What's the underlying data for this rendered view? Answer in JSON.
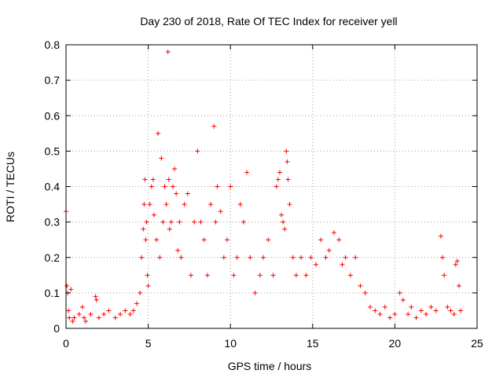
{
  "chart_data": {
    "type": "scatter",
    "title": "Day 230 of 2018, Rate Of TEC Index for receiver yell",
    "xlabel": "GPS time / hours",
    "ylabel": "ROTI / TECUs",
    "xlim": [
      0,
      25
    ],
    "ylim": [
      0,
      0.8
    ],
    "xticks": [
      0,
      5,
      10,
      15,
      20,
      25
    ],
    "yticks": [
      0,
      0.1,
      0.2,
      0.3,
      0.4,
      0.5,
      0.6,
      0.7,
      0.8
    ],
    "xtick_labels": [
      "0",
      "5",
      "10",
      "15",
      "20",
      "25"
    ],
    "ytick_labels": [
      "0",
      "0.1",
      "0.2",
      "0.3",
      "0.4",
      "0.5",
      "0.6",
      "0.7",
      "0.8"
    ],
    "grid": true,
    "legend": "none",
    "marker": "+",
    "color": "#ff0000",
    "series": [
      {
        "x": [
          0.0,
          0.05,
          0.1,
          0.15,
          0.2,
          0.3,
          0.4,
          0.5,
          0.8,
          1.0,
          1.1,
          1.2,
          1.5,
          1.8,
          1.85,
          2.0,
          2.3,
          2.6,
          3.0,
          3.3,
          3.6,
          3.9,
          4.1,
          4.3,
          4.5,
          4.6,
          4.7,
          4.75,
          4.8,
          4.85,
          4.9,
          4.95,
          5.0,
          5.1,
          5.2,
          5.3,
          5.35,
          5.5,
          5.6,
          5.7,
          5.8,
          5.9,
          6.0,
          6.1,
          6.2,
          6.25,
          6.3,
          6.4,
          6.5,
          6.6,
          6.7,
          6.8,
          6.9,
          7.0,
          7.2,
          7.4,
          7.6,
          7.8,
          8.0,
          8.2,
          8.4,
          8.6,
          8.8,
          9.0,
          9.1,
          9.2,
          9.4,
          9.6,
          9.8,
          10.0,
          10.2,
          10.4,
          10.6,
          10.8,
          11.0,
          11.2,
          11.5,
          11.8,
          12.0,
          12.3,
          12.6,
          12.8,
          12.9,
          13.0,
          13.1,
          13.2,
          13.3,
          13.4,
          13.45,
          13.5,
          13.6,
          13.8,
          14.0,
          14.3,
          14.6,
          14.9,
          15.2,
          15.5,
          15.8,
          16.0,
          16.3,
          16.6,
          16.8,
          17.0,
          17.3,
          17.6,
          17.9,
          18.2,
          18.5,
          18.8,
          19.1,
          19.4,
          19.7,
          20.0,
          20.3,
          20.5,
          20.8,
          21.0,
          21.3,
          21.6,
          21.9,
          22.2,
          22.5,
          22.8,
          22.9,
          23.0,
          23.2,
          23.4,
          23.6,
          23.7,
          23.8,
          23.9,
          24.0
        ],
        "y": [
          0.33,
          0.12,
          0.1,
          0.05,
          0.03,
          0.11,
          0.02,
          0.03,
          0.04,
          0.06,
          0.03,
          0.02,
          0.04,
          0.09,
          0.08,
          0.03,
          0.04,
          0.05,
          0.03,
          0.04,
          0.05,
          0.04,
          0.05,
          0.07,
          0.1,
          0.2,
          0.28,
          0.35,
          0.42,
          0.25,
          0.3,
          0.15,
          0.12,
          0.35,
          0.4,
          0.42,
          0.32,
          0.25,
          0.55,
          0.2,
          0.48,
          0.3,
          0.4,
          0.35,
          0.78,
          0.42,
          0.28,
          0.3,
          0.4,
          0.45,
          0.38,
          0.22,
          0.3,
          0.2,
          0.35,
          0.38,
          0.15,
          0.3,
          0.5,
          0.3,
          0.25,
          0.15,
          0.35,
          0.57,
          0.3,
          0.4,
          0.33,
          0.2,
          0.25,
          0.4,
          0.15,
          0.2,
          0.35,
          0.3,
          0.44,
          0.2,
          0.1,
          0.15,
          0.2,
          0.25,
          0.15,
          0.4,
          0.42,
          0.44,
          0.32,
          0.3,
          0.28,
          0.5,
          0.47,
          0.42,
          0.35,
          0.2,
          0.15,
          0.2,
          0.15,
          0.2,
          0.18,
          0.25,
          0.2,
          0.22,
          0.27,
          0.25,
          0.18,
          0.2,
          0.15,
          0.2,
          0.12,
          0.1,
          0.06,
          0.05,
          0.04,
          0.06,
          0.03,
          0.04,
          0.1,
          0.08,
          0.04,
          0.06,
          0.03,
          0.05,
          0.04,
          0.06,
          0.05,
          0.26,
          0.2,
          0.15,
          0.06,
          0.05,
          0.04,
          0.18,
          0.19,
          0.12,
          0.05
        ]
      }
    ]
  }
}
